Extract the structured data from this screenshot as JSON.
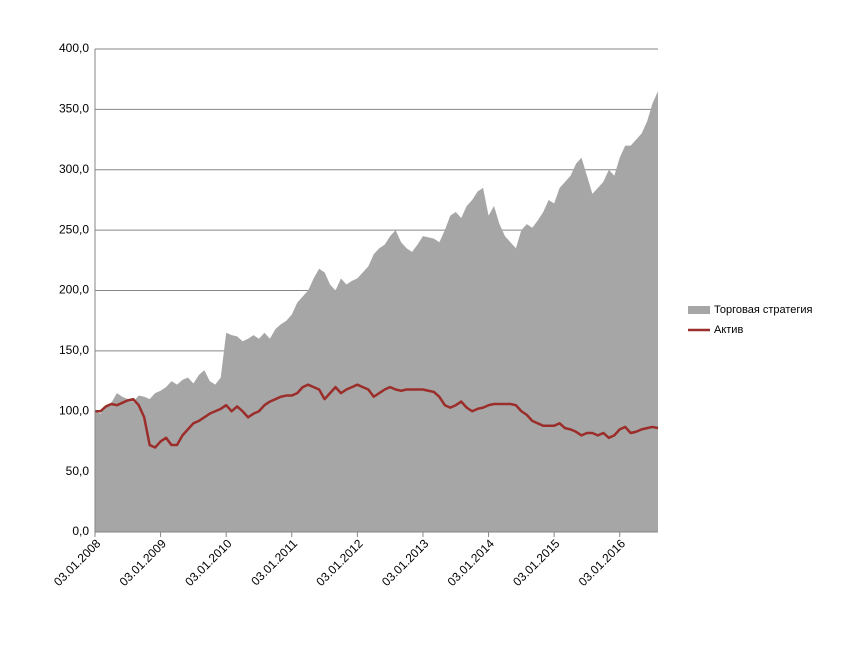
{
  "chart_data": {
    "type": "area-line",
    "categories": [
      "03.01.2008",
      null,
      null,
      null,
      null,
      null,
      null,
      null,
      null,
      null,
      null,
      null,
      "03.01.2009",
      null,
      null,
      null,
      null,
      null,
      null,
      null,
      null,
      null,
      null,
      null,
      "03.01.2010",
      null,
      null,
      null,
      null,
      null,
      null,
      null,
      null,
      null,
      null,
      null,
      "03.01.2011",
      null,
      null,
      null,
      null,
      null,
      null,
      null,
      null,
      null,
      null,
      null,
      "03.01.2012",
      null,
      null,
      null,
      null,
      null,
      null,
      null,
      null,
      null,
      null,
      null,
      "03.01.2013",
      null,
      null,
      null,
      null,
      null,
      null,
      null,
      null,
      null,
      null,
      null,
      "03.01.2014",
      null,
      null,
      null,
      null,
      null,
      null,
      null,
      null,
      null,
      null,
      null,
      "03.01.2015",
      null,
      null,
      null,
      null,
      null,
      null,
      null,
      null,
      null,
      null,
      null,
      "03.01.2016",
      null,
      null,
      null,
      null,
      null,
      null,
      null
    ],
    "series": [
      {
        "name": "Торговая стратегия",
        "kind": "area",
        "color": "#a6a6a6",
        "values": [
          100,
          98,
          104,
          107,
          115,
          112,
          110,
          108,
          113,
          112,
          110,
          115,
          117,
          120,
          125,
          122,
          126,
          128,
          123,
          130,
          134,
          125,
          122,
          128,
          165,
          163,
          162,
          158,
          160,
          163,
          160,
          165,
          160,
          168,
          172,
          175,
          180,
          190,
          195,
          200,
          210,
          218,
          215,
          205,
          200,
          210,
          205,
          208,
          210,
          215,
          220,
          230,
          235,
          238,
          245,
          250,
          240,
          235,
          232,
          238,
          245,
          244,
          243,
          240,
          250,
          262,
          265,
          260,
          270,
          275,
          282,
          285,
          262,
          270,
          255,
          245,
          240,
          235,
          250,
          255,
          252,
          258,
          265,
          275,
          272,
          285,
          290,
          295,
          305,
          310,
          295,
          280,
          285,
          290,
          300,
          295,
          310,
          320,
          320,
          325,
          330,
          340,
          355,
          365
        ]
      },
      {
        "name": "Актив",
        "kind": "line",
        "color": "#9b2d2a",
        "values": [
          100,
          100,
          104,
          106,
          105,
          107,
          109,
          110,
          105,
          95,
          72,
          70,
          75,
          78,
          72,
          72,
          80,
          85,
          90,
          92,
          95,
          98,
          100,
          102,
          105,
          100,
          104,
          100,
          95,
          98,
          100,
          105,
          108,
          110,
          112,
          113,
          113,
          115,
          120,
          122,
          120,
          118,
          110,
          115,
          120,
          115,
          118,
          120,
          122,
          120,
          118,
          112,
          115,
          118,
          120,
          118,
          117,
          118,
          118,
          118,
          118,
          117,
          116,
          112,
          105,
          103,
          105,
          108,
          103,
          100,
          102,
          103,
          105,
          106,
          106,
          106,
          106,
          105,
          100,
          97,
          92,
          90,
          88,
          88,
          88,
          90,
          86,
          85,
          83,
          80,
          82,
          82,
          80,
          82,
          78,
          80,
          85,
          87,
          82,
          83,
          85,
          86,
          87,
          86
        ]
      }
    ],
    "ylim": [
      0,
      400
    ],
    "yticks": [
      {
        "value": 0,
        "label": "0,0"
      },
      {
        "value": 50,
        "label": "50,0"
      },
      {
        "value": 100,
        "label": "100,0"
      },
      {
        "value": 150,
        "label": "150,0"
      },
      {
        "value": 200,
        "label": "200,0"
      },
      {
        "value": 250,
        "label": "250,0"
      },
      {
        "value": 300,
        "label": "300,0"
      },
      {
        "value": 350,
        "label": "350,0"
      },
      {
        "value": 400,
        "label": "400,0"
      }
    ],
    "grid": true,
    "legend": "right"
  }
}
